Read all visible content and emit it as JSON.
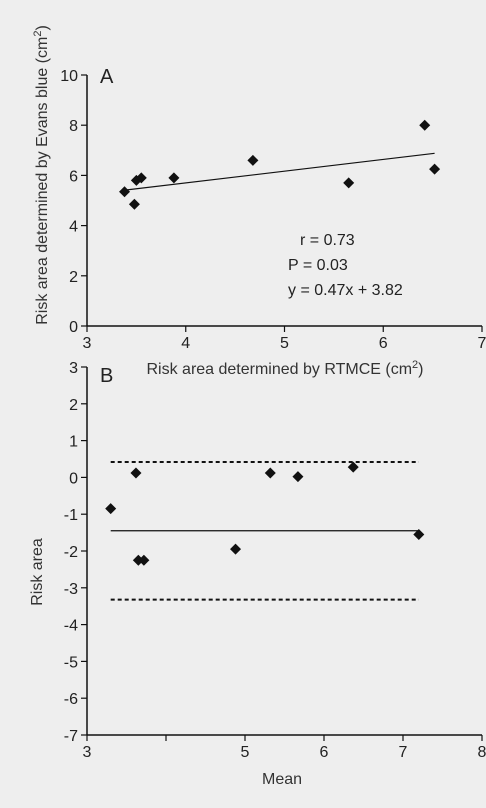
{
  "chart_data": [
    {
      "type": "scatter",
      "panel_label": "A",
      "xlabel_main": "Risk area determined by RTMCE (cm",
      "xlabel_sup": "2",
      "xlabel_end": ")",
      "ylabel_main": "Risk area determined by Evans blue (cm",
      "ylabel_sup": "2",
      "ylabel_end": ")",
      "xlim": [
        3,
        7
      ],
      "ylim": [
        0,
        10
      ],
      "xticks": [
        "3",
        "4",
        "5",
        "6",
        "7"
      ],
      "yticks": [
        "0",
        "2",
        "4",
        "6",
        "8",
        "10"
      ],
      "points": [
        {
          "x": 3.38,
          "y": 5.35
        },
        {
          "x": 3.48,
          "y": 4.85
        },
        {
          "x": 3.5,
          "y": 5.8
        },
        {
          "x": 3.55,
          "y": 5.9
        },
        {
          "x": 3.88,
          "y": 5.9
        },
        {
          "x": 4.68,
          "y": 6.6
        },
        {
          "x": 5.65,
          "y": 5.7
        },
        {
          "x": 6.42,
          "y": 8.0
        },
        {
          "x": 6.52,
          "y": 6.25
        }
      ],
      "fit_line": {
        "x": [
          3.38,
          6.52
        ],
        "y": [
          5.41,
          6.88
        ]
      },
      "annotations": [
        "r = 0.73",
        "P = 0.03",
        "y = 0.47x + 3.82"
      ]
    },
    {
      "type": "scatter",
      "panel_label": "B",
      "xlabel": "Mean",
      "ylabel": "Risk area",
      "xlim": [
        3,
        8
      ],
      "ylim": [
        -7,
        3
      ],
      "xticks": [
        "3",
        "5",
        "6",
        "7",
        "8"
      ],
      "xtick_values": [
        3,
        5,
        6,
        7,
        8
      ],
      "extra_xtick_values": [
        4
      ],
      "yticks": [
        "-7",
        "-6",
        "-5",
        "-4",
        "-3",
        "-2",
        "-1",
        "0",
        "1",
        "2",
        "3"
      ],
      "points": [
        {
          "x": 3.3,
          "y": -0.85
        },
        {
          "x": 3.62,
          "y": 0.12
        },
        {
          "x": 3.65,
          "y": -2.25
        },
        {
          "x": 3.72,
          "y": -2.25
        },
        {
          "x": 4.88,
          "y": -1.95
        },
        {
          "x": 5.32,
          "y": 0.12
        },
        {
          "x": 5.67,
          "y": 0.02
        },
        {
          "x": 6.37,
          "y": 0.28
        },
        {
          "x": 7.2,
          "y": -1.55
        }
      ],
      "mean_line": {
        "x": [
          3.3,
          7.2
        ],
        "y": -1.45
      },
      "limit_lines": [
        {
          "x": [
            3.3,
            7.2
          ],
          "y": 0.42
        },
        {
          "x": [
            3.3,
            7.2
          ],
          "y": -3.32
        }
      ]
    }
  ]
}
